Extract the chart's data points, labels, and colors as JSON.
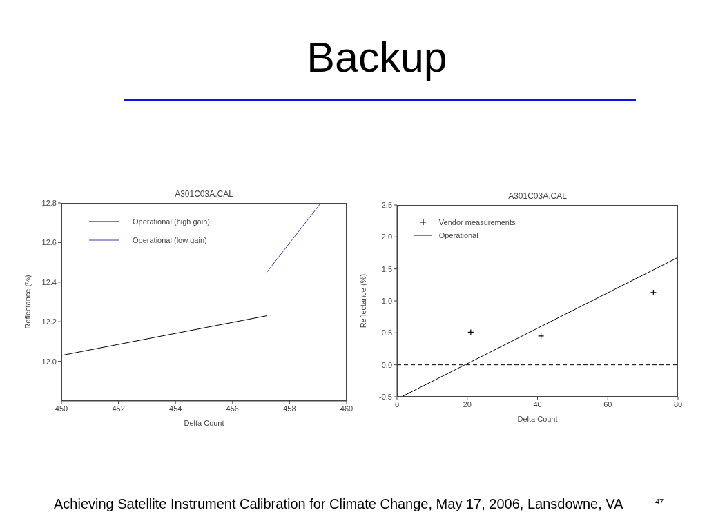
{
  "chart_data": [
    {
      "type": "other",
      "title": "Backup",
      "annotations": [
        "Achieving Satellite Instrument Calibration for Climate Change, May 17, 2006, Lansdowne, VA",
        "47"
      ]
    },
    {
      "type": "line",
      "title": "A301C03A.CAL",
      "xlabel": "Delta Count",
      "ylabel": "Reflectance (%)",
      "xlim": [
        450,
        460
      ],
      "xticks": [
        450,
        452,
        454,
        456,
        458,
        460
      ],
      "ylim": [
        11.8,
        12.8
      ],
      "yticks": [
        {
          "value": 12,
          "label": "12.0"
        },
        12.2,
        12.4,
        12.6,
        12.8
      ],
      "legend": "top left",
      "line_style": "solid",
      "series": [
        {
          "name": "Operational (high gain)",
          "color": "#000000",
          "x": [
            450,
            457.2
          ],
          "values": [
            12.03,
            12.23
          ]
        },
        {
          "name": "Operational (low gain)",
          "color": "#3c3ca0",
          "x": [
            457.2,
            459.1
          ],
          "values": [
            12.45,
            12.8
          ]
        }
      ]
    },
    {
      "type": "line",
      "title": "A301C03A.CAL",
      "xlabel": "Delta Count",
      "ylabel": "Reflectance (%)",
      "xlim": [
        0,
        80
      ],
      "xticks": [
        0,
        20,
        40,
        60,
        80
      ],
      "ylim": [
        -0.5,
        2.5
      ],
      "yticks": [
        -0.5,
        {
          "value": 0,
          "label": "0.0"
        },
        0.5,
        {
          "value": 1,
          "label": "1.0"
        },
        1.5,
        {
          "value": 2,
          "label": "2.0"
        },
        2.5
      ],
      "legend": "top left",
      "ref_lines": [
        {
          "axis": "y",
          "value": 0,
          "color": "#000000",
          "line_style": "dashed"
        }
      ],
      "series": [
        {
          "name": "Vendor measurements",
          "type": "scatter",
          "marker": "cross",
          "color": "#000000",
          "x": [
            21,
            41,
            73
          ],
          "values": [
            0.51,
            0.45,
            1.13
          ]
        },
        {
          "name": "Operational",
          "type": "line",
          "line_style": "solid",
          "color": "#000000",
          "x": [
            1.3,
            80
          ],
          "values": [
            -0.5,
            1.68
          ]
        }
      ]
    }
  ]
}
